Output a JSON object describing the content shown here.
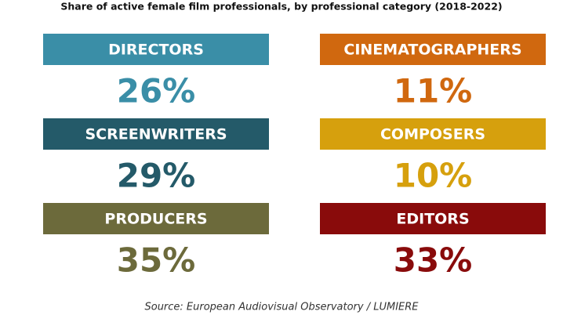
{
  "chart_data": {
    "type": "stat-cards",
    "title": "Share of active female film professionals, by professional category (2018-2022)",
    "categories": [
      "DIRECTORS",
      "SCREENWRITERS",
      "PRODUCERS",
      "CINEMATOGRAPHERS",
      "COMPOSERS",
      "EDITORS"
    ],
    "values": [
      26,
      29,
      35,
      11,
      10,
      33
    ],
    "value_labels": [
      "26%",
      "29%",
      "35%",
      "11%",
      "10%",
      "33%"
    ],
    "colors": [
      "#3a8ea7",
      "#245a69",
      "#6c6a3b",
      "#d0680f",
      "#d6a00d",
      "#890b0b"
    ],
    "source": "Source: European Audiovisual Observatory / LUMIERE"
  }
}
